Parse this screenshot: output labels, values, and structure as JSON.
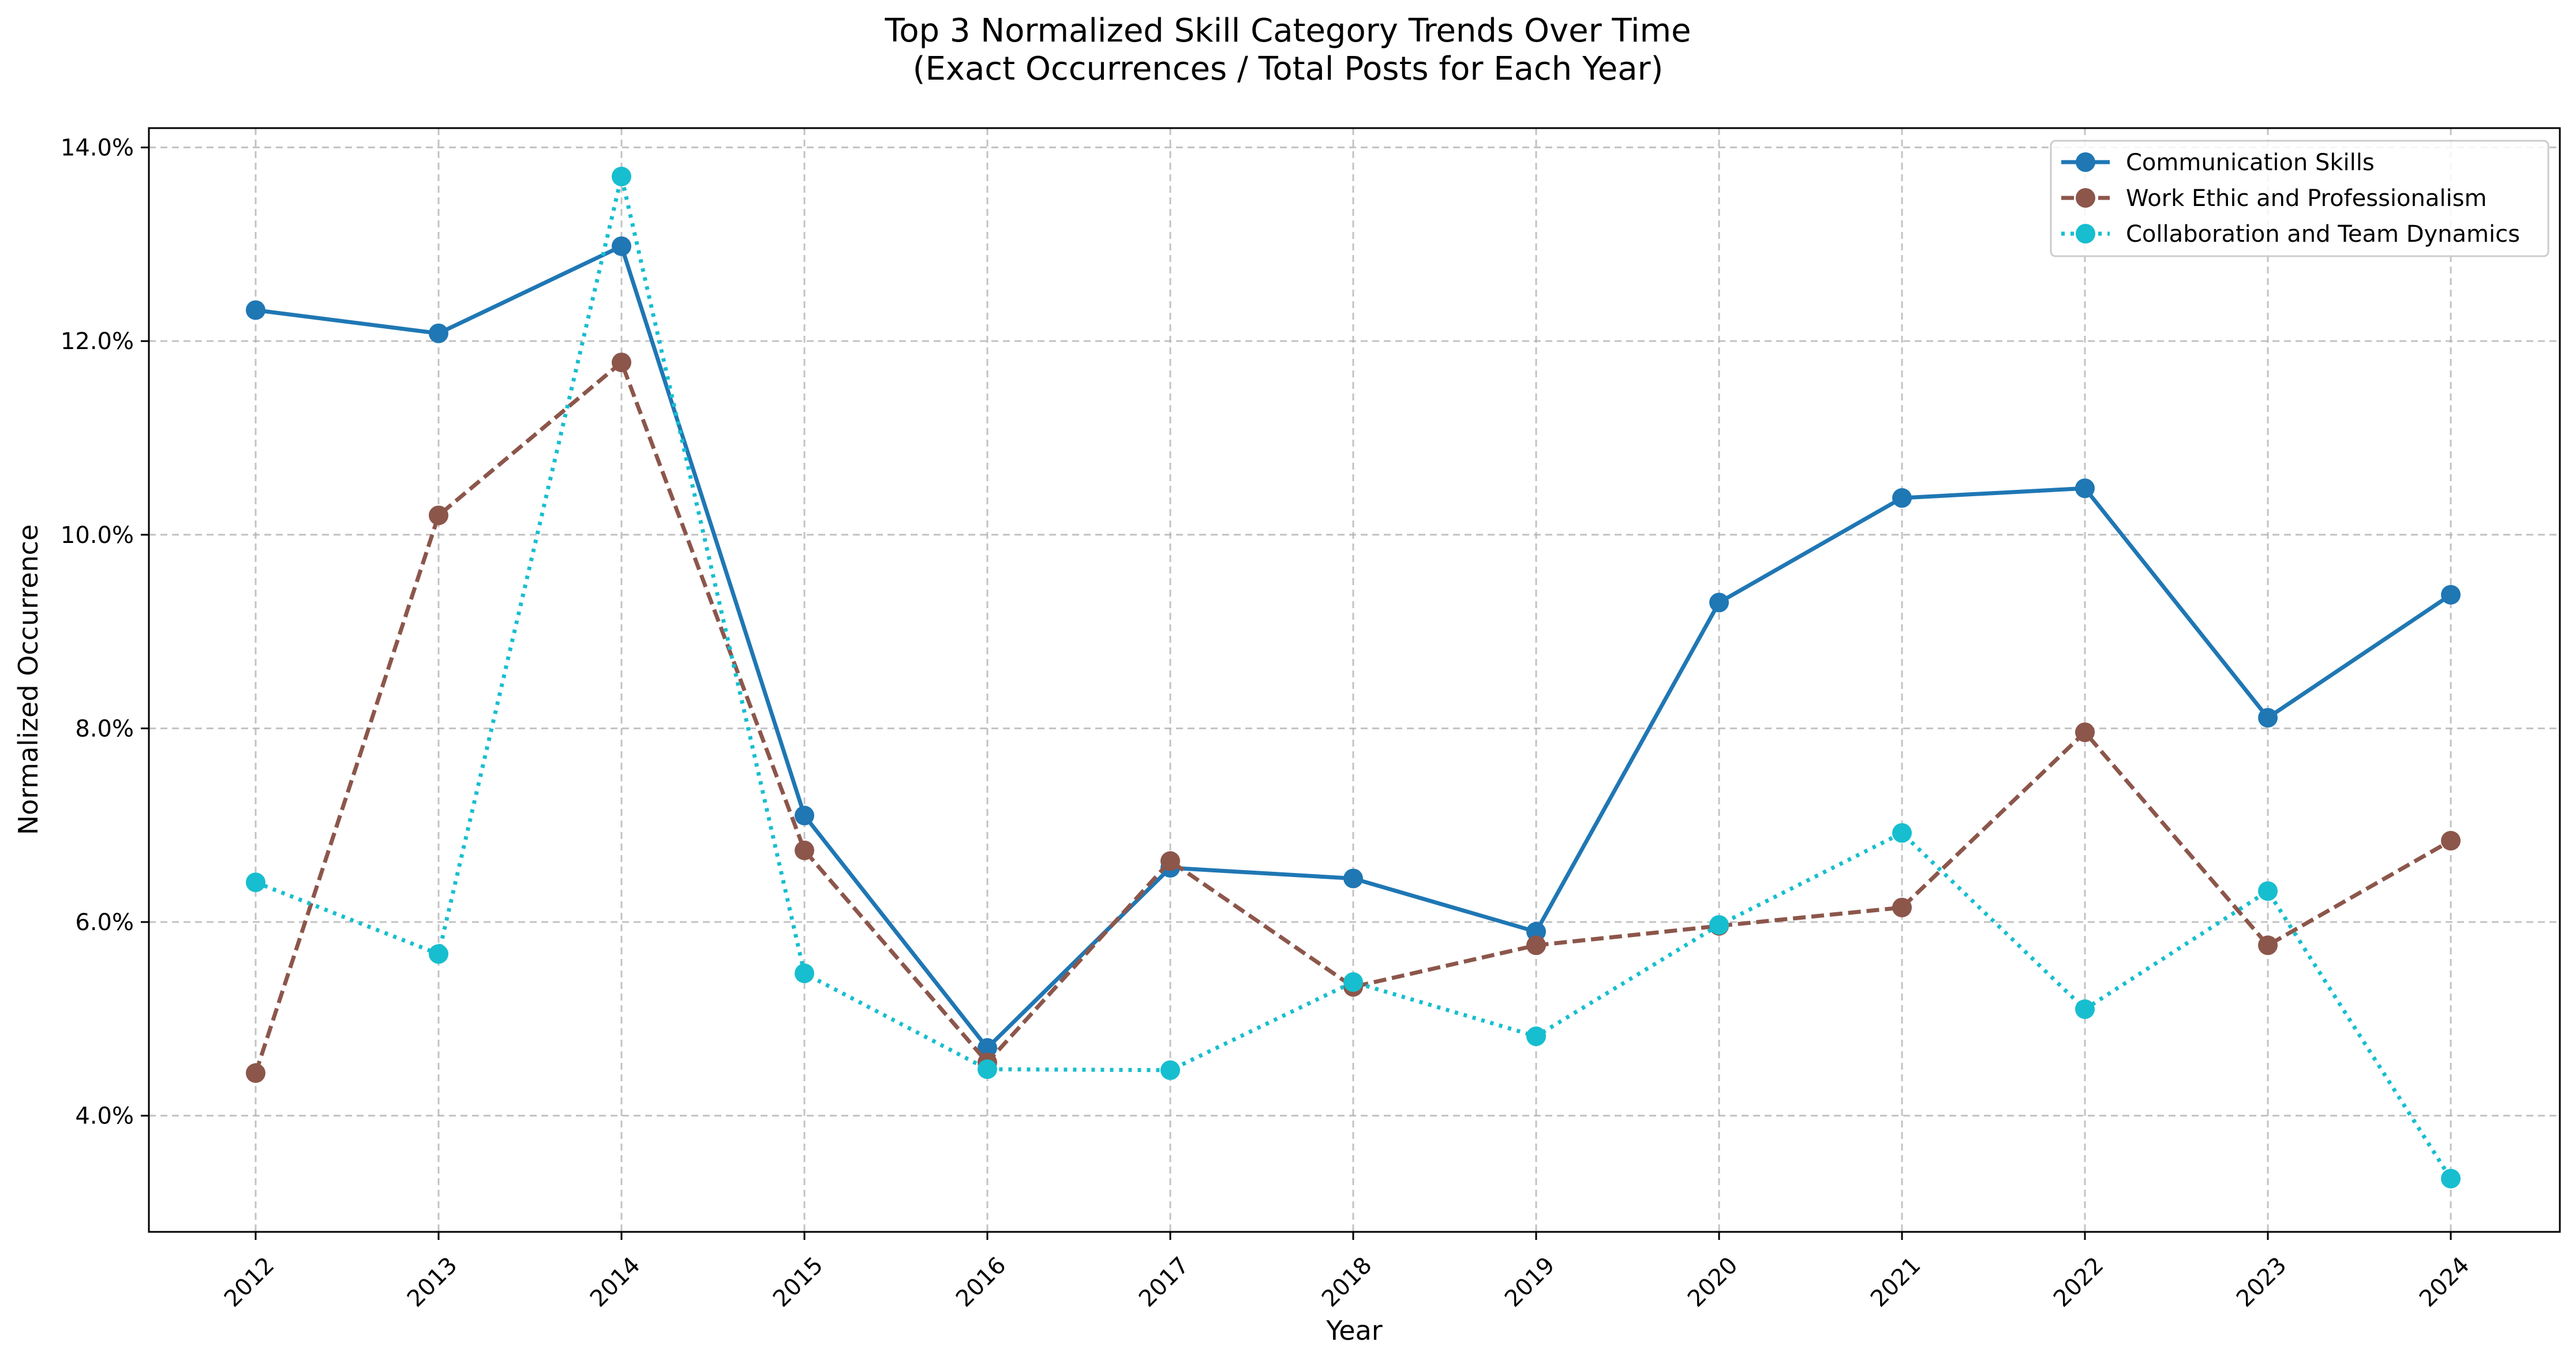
{
  "chart_data": {
    "type": "line",
    "title": "Top 3 Normalized Skill Category Trends Over Time",
    "subtitle": "(Exact Occurrences / Total Posts for Each Year)",
    "xlabel": "Year",
    "ylabel": "Normalized Occurrence",
    "x": [
      "2012",
      "2013",
      "2014",
      "2015",
      "2016",
      "2017",
      "2018",
      "2019",
      "2020",
      "2021",
      "2022",
      "2023",
      "2024"
    ],
    "y_ticks": [
      "4.0%",
      "6.0%",
      "8.0%",
      "10.0%",
      "12.0%",
      "14.0%"
    ],
    "y_tick_values": [
      4,
      6,
      8,
      10,
      12,
      14
    ],
    "ylim": [
      2.8,
      14.2
    ],
    "grid": true,
    "legend_position": "top-right",
    "series": [
      {
        "name": "Communication Skills",
        "color": "#1f77b4",
        "line_style": "solid",
        "values": [
          12.32,
          12.08,
          12.98,
          7.1,
          4.7,
          6.56,
          6.45,
          5.9,
          9.3,
          10.38,
          10.48,
          8.11,
          9.38
        ]
      },
      {
        "name": "Work Ethic and Professionalism",
        "color": "#8c564b",
        "line_style": "dashed",
        "values": [
          4.44,
          10.2,
          11.78,
          6.74,
          4.55,
          6.63,
          5.33,
          5.76,
          5.96,
          6.15,
          7.96,
          5.76,
          6.84
        ]
      },
      {
        "name": "Collaboration and Team Dynamics",
        "color": "#17becf",
        "line_style": "dotted",
        "values": [
          6.41,
          5.67,
          13.7,
          5.47,
          4.48,
          4.47,
          5.38,
          4.82,
          5.97,
          6.92,
          5.1,
          6.32,
          3.35
        ]
      }
    ]
  }
}
